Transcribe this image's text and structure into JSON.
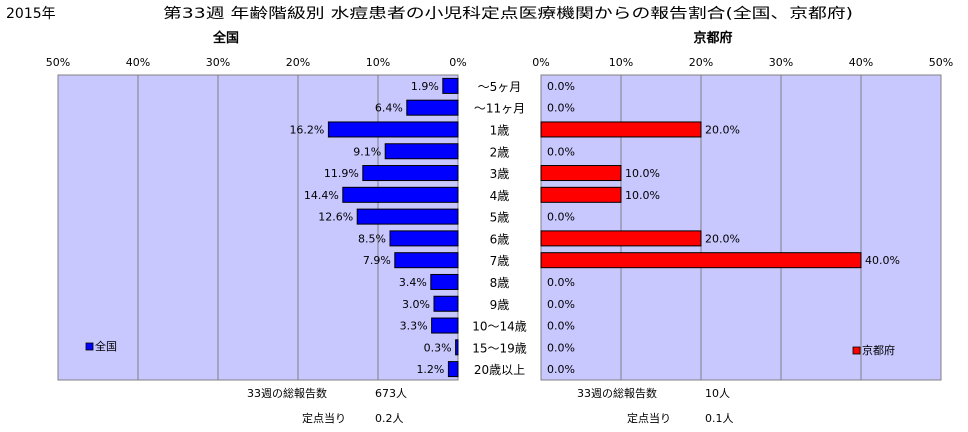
{
  "header": {
    "year": "2015年",
    "title": "第33週 年齢階級別 水痘患者の小児科定点医療機関からの報告割合(全国、京都府)"
  },
  "colors": {
    "plot_bg": "#c8c8ff",
    "national_bar": "#0000ff",
    "kyoto_bar": "#ff0000",
    "grid": "#808080"
  },
  "chart_data": [
    {
      "type": "bar",
      "orientation": "horizontal",
      "direction": "right-to-left",
      "title": "全国",
      "legend": "全国",
      "legend_position": "bottom-left",
      "xlim": [
        0,
        50
      ],
      "ticks": [
        "0%",
        "10%",
        "20%",
        "30%",
        "40%",
        "50%"
      ],
      "grid": true,
      "categories": [
        "〜5ヶ月",
        "〜11ヶ月",
        "1歳",
        "2歳",
        "3歳",
        "4歳",
        "5歳",
        "6歳",
        "7歳",
        "8歳",
        "9歳",
        "10〜14歳",
        "15〜19歳",
        "20歳以上"
      ],
      "values": [
        1.9,
        6.4,
        16.2,
        9.1,
        11.9,
        14.4,
        12.6,
        8.5,
        7.9,
        3.4,
        3.0,
        3.3,
        0.3,
        1.2
      ],
      "labels": [
        "1.9%",
        "6.4%",
        "16.2%",
        "9.1%",
        "11.9%",
        "14.4%",
        "12.6%",
        "8.5%",
        "7.9%",
        "3.4%",
        "3.0%",
        "3.3%",
        "0.3%",
        "1.2%"
      ]
    },
    {
      "type": "bar",
      "orientation": "horizontal",
      "direction": "left-to-right",
      "title": "京都府",
      "legend": "京都府",
      "legend_position": "bottom-right",
      "xlim": [
        0,
        50
      ],
      "ticks": [
        "0%",
        "10%",
        "20%",
        "30%",
        "40%",
        "50%"
      ],
      "grid": true,
      "categories": [
        "〜5ヶ月",
        "〜11ヶ月",
        "1歳",
        "2歳",
        "3歳",
        "4歳",
        "5歳",
        "6歳",
        "7歳",
        "8歳",
        "9歳",
        "10〜14歳",
        "15〜19歳",
        "20歳以上"
      ],
      "values": [
        0,
        0,
        20,
        0,
        10,
        10,
        0,
        20,
        40,
        0,
        0,
        0,
        0,
        0
      ],
      "labels": [
        "0.0%",
        "0.0%",
        "20.0%",
        "0.0%",
        "10.0%",
        "10.0%",
        "0.0%",
        "20.0%",
        "40.0%",
        "0.0%",
        "0.0%",
        "0.0%",
        "0.0%",
        "0.0%"
      ]
    }
  ],
  "footer": {
    "national_total_label": "33週の総報告数",
    "national_total_value": "673人",
    "national_per_label": "定点当り",
    "national_per_value": "0.2人",
    "kyoto_total_label": "33週の総報告数",
    "kyoto_total_value": "10人",
    "kyoto_per_label": "定点当り",
    "kyoto_per_value": "0.1人"
  }
}
